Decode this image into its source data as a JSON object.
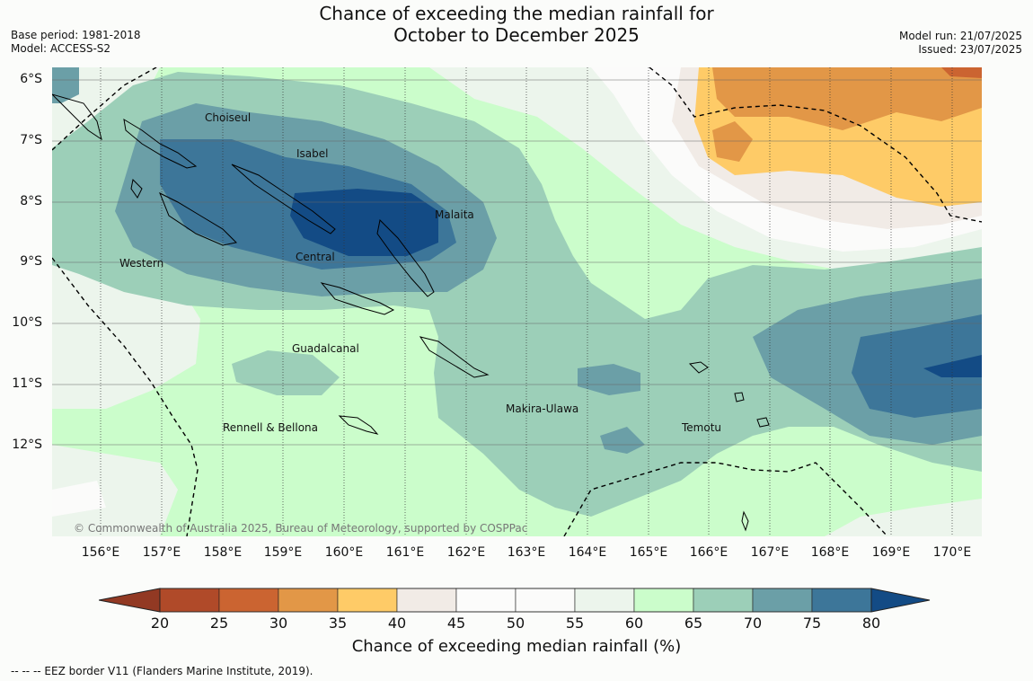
{
  "title_line1": "Chance of exceeding the median rainfall for",
  "title_line2": "October to December 2025",
  "base_period": "Base period: 1981-2018",
  "model": "Model: ACCESS-S2",
  "model_run": "Model run: 21/07/2025",
  "issued": "Issued: 23/07/2025",
  "lat_labels": [
    "6°S",
    "7°S",
    "8°S",
    "9°S",
    "10°S",
    "11°S",
    "12°S"
  ],
  "lon_labels": [
    "156°E",
    "157°E",
    "158°E",
    "159°E",
    "160°E",
    "161°E",
    "162°E",
    "163°E",
    "164°E",
    "165°E",
    "166°E",
    "167°E",
    "168°E",
    "169°E",
    "170°E"
  ],
  "regions": {
    "choiseul": "Choiseul",
    "isabel": "Isabel",
    "malaita": "Malaita",
    "western": "Western",
    "central": "Central",
    "guadalcanal": "Guadalcanal",
    "makira": "Makira-Ulawa",
    "temotu": "Temotu",
    "rennell": "Rennell & Bellona"
  },
  "copyright": "© Commonwealth of Australia 2025, Bureau of Meteorology, supported by COSPPac",
  "colorbar": {
    "ticks": [
      "20",
      "25",
      "30",
      "35",
      "40",
      "45",
      "50",
      "55",
      "60",
      "65",
      "70",
      "75",
      "80"
    ],
    "colors": [
      "#b04a29",
      "#cb6431",
      "#e29747",
      "#fecb67",
      "#f1ebe6",
      "#fcfcfb",
      "#fbfbfa",
      "#ecf5ec",
      "#cbfdcb",
      "#9ccfb8",
      "#6b9fa7",
      "#3d7699"
    ],
    "under_color": "#923923",
    "over_color": "#134b85",
    "title": "Chance of exceeding median rainfall (%)"
  },
  "footnote": "--  --  -- EEZ border V11 (Flanders Marine Institute, 2019)."
}
